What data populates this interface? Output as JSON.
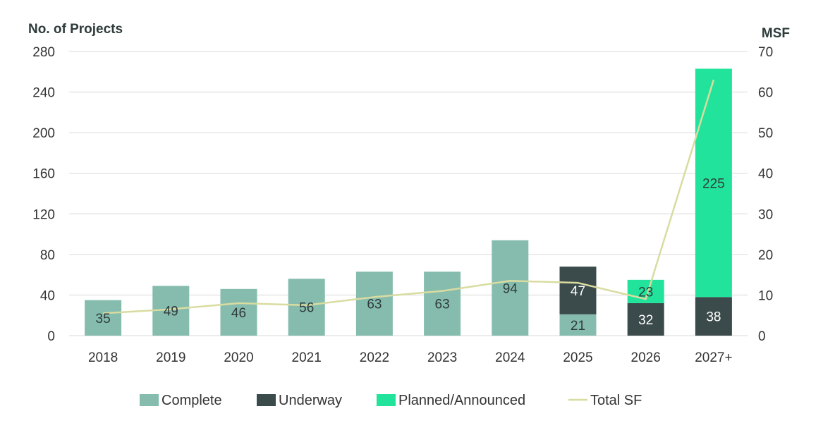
{
  "chart_data": {
    "type": "bar",
    "stacked": true,
    "title": "",
    "ylabel_left": "No. of Projects",
    "ylabel_right": "MSF",
    "ylim_left": [
      0,
      280
    ],
    "ylim_right": [
      0,
      70
    ],
    "yticks_left": [
      "0",
      "40",
      "80",
      "120",
      "160",
      "200",
      "240",
      "280"
    ],
    "yticks_right": [
      "0",
      "10",
      "20",
      "30",
      "40",
      "50",
      "60",
      "70"
    ],
    "grid": true,
    "legend_position": "bottom",
    "categories": [
      "2018",
      "2019",
      "2020",
      "2021",
      "2022",
      "2023",
      "2024",
      "2025",
      "2026",
      "2027+"
    ],
    "series": [
      {
        "name": "Complete",
        "color": "#85bcae",
        "values": [
          35,
          49,
          46,
          56,
          63,
          63,
          94,
          21,
          0,
          0
        ],
        "labels": [
          "35",
          "49",
          "46",
          "56",
          "63",
          "63",
          "94",
          "21",
          "",
          ""
        ]
      },
      {
        "name": "Underway",
        "color": "#3b4a4a",
        "values": [
          0,
          0,
          0,
          0,
          0,
          0,
          0,
          47,
          32,
          38
        ],
        "labels": [
          "",
          "",
          "",
          "",
          "",
          "",
          "",
          "47",
          "32",
          "38"
        ]
      },
      {
        "name": "Planned/Announced",
        "color": "#22e39c",
        "values": [
          0,
          0,
          0,
          0,
          0,
          0,
          0,
          0,
          23,
          225
        ],
        "labels": [
          "",
          "",
          "",
          "",
          "",
          "",
          "",
          "",
          "23",
          "225"
        ]
      }
    ],
    "line_series": {
      "name": "Total SF",
      "color": "#d9dca0",
      "axis": "right",
      "values": [
        5.5,
        6.5,
        8,
        7.5,
        9.5,
        11,
        13.5,
        13,
        9,
        63
      ]
    }
  }
}
